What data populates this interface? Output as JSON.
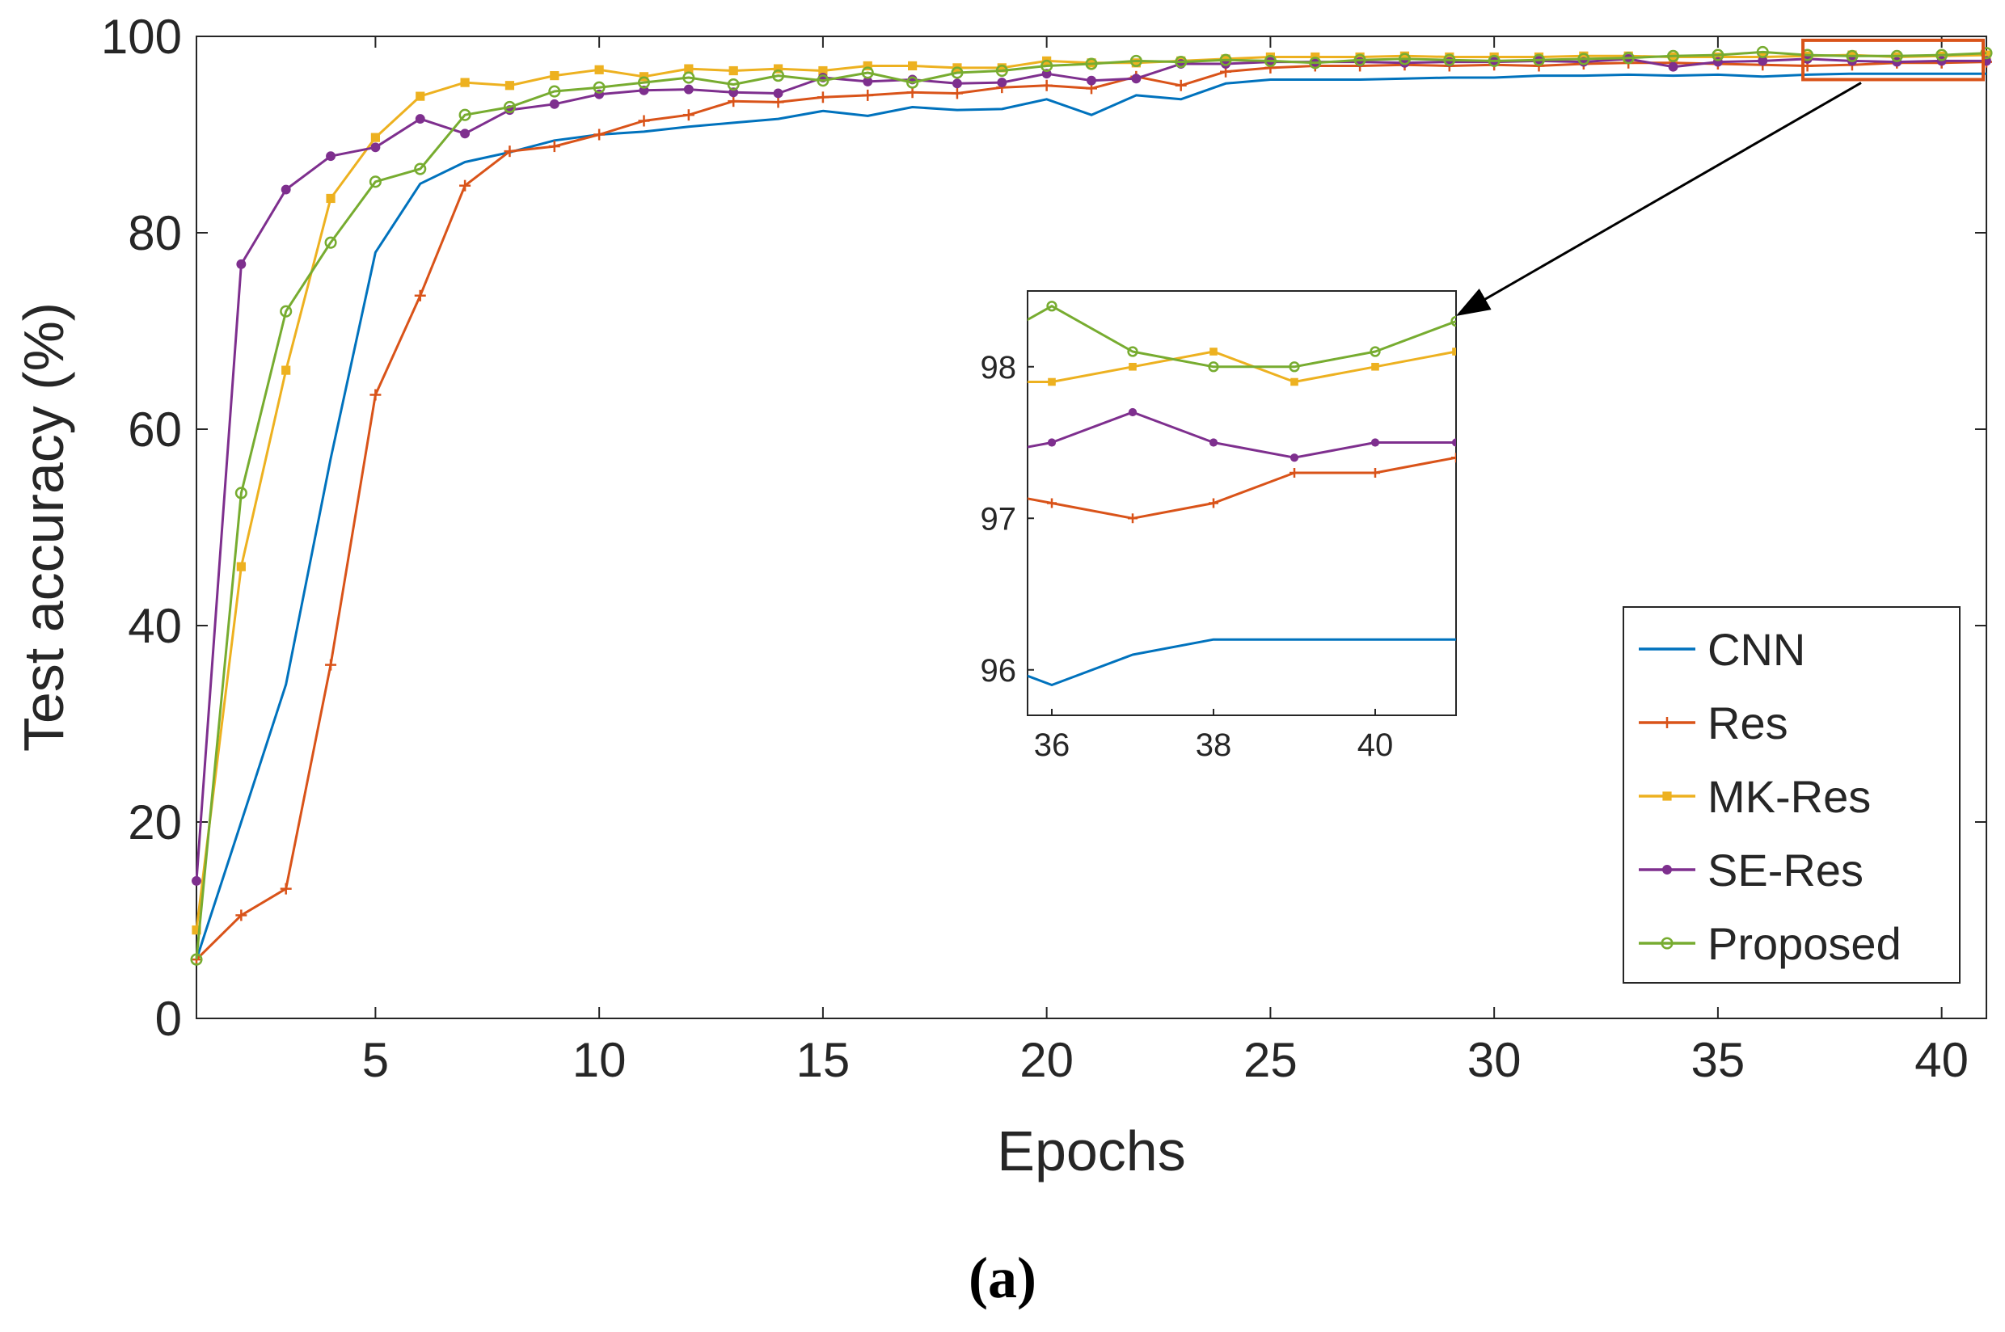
{
  "chart_data": {
    "type": "line",
    "xlabel": "Epochs",
    "ylabel": "Test accuracy (%)",
    "xlim": [
      1,
      41
    ],
    "ylim": [
      0,
      100
    ],
    "xticks": [
      "5",
      "10",
      "15",
      "20",
      "25",
      "30",
      "35",
      "40"
    ],
    "yticks": [
      "0",
      "20",
      "40",
      "60",
      "80",
      "100"
    ],
    "legend_position": "bottom-right",
    "caption": "(a)",
    "series": [
      {
        "name": "CNN",
        "color": "#0072BD",
        "marker": "none",
        "values": [
          6.0,
          20.0,
          34.0,
          57.0,
          78.0,
          85.0,
          87.2,
          88.2,
          89.4,
          90.0,
          90.3,
          90.8,
          91.2,
          91.6,
          92.4,
          91.9,
          92.8,
          92.5,
          92.6,
          93.6,
          92.0,
          94.0,
          93.6,
          95.2,
          95.6,
          95.6,
          95.6,
          95.7,
          95.8,
          95.8,
          96.0,
          96.0,
          96.1,
          96.0,
          96.1,
          95.9,
          96.1,
          96.2,
          96.2,
          96.2,
          96.2
        ]
      },
      {
        "name": "Res",
        "color": "#D95319",
        "marker": "plus",
        "values": [
          6.0,
          10.5,
          13.2,
          36.0,
          63.5,
          73.6,
          84.8,
          88.3,
          88.8,
          90.0,
          91.4,
          92.0,
          93.4,
          93.3,
          93.8,
          94.0,
          94.3,
          94.2,
          94.8,
          95.0,
          94.7,
          95.9,
          95.0,
          96.4,
          96.8,
          97.0,
          97.0,
          97.1,
          97.0,
          97.1,
          97.0,
          97.2,
          97.3,
          97.3,
          97.2,
          97.1,
          97.0,
          97.1,
          97.3,
          97.3,
          97.4
        ]
      },
      {
        "name": "MK-Res",
        "color": "#EDB120",
        "marker": "square",
        "values": [
          9.0,
          46.0,
          66.0,
          83.5,
          89.7,
          93.9,
          95.3,
          95.0,
          96.0,
          96.6,
          95.9,
          96.7,
          96.5,
          96.7,
          96.5,
          97.0,
          97.0,
          96.8,
          96.8,
          97.5,
          97.3,
          97.3,
          97.5,
          97.7,
          97.9,
          97.9,
          97.9,
          98.0,
          97.9,
          97.9,
          97.9,
          98.0,
          98.0,
          97.9,
          97.9,
          97.9,
          98.0,
          98.1,
          97.9,
          98.0,
          98.1
        ]
      },
      {
        "name": "SE-Res",
        "color": "#7E2F8E",
        "marker": "dot",
        "values": [
          14.0,
          76.8,
          84.4,
          87.8,
          88.7,
          91.6,
          90.1,
          92.5,
          93.1,
          94.1,
          94.5,
          94.6,
          94.3,
          94.2,
          95.8,
          95.4,
          95.6,
          95.2,
          95.3,
          96.2,
          95.5,
          95.7,
          97.2,
          97.2,
          97.4,
          97.4,
          97.4,
          97.3,
          97.4,
          97.4,
          97.5,
          97.4,
          97.7,
          96.9,
          97.4,
          97.5,
          97.7,
          97.5,
          97.4,
          97.5,
          97.5
        ]
      },
      {
        "name": "Proposed",
        "color": "#77AC30",
        "marker": "circle",
        "values": [
          6.0,
          53.5,
          72.0,
          79.0,
          85.2,
          86.5,
          92.0,
          92.8,
          94.4,
          94.8,
          95.3,
          95.8,
          95.1,
          96.0,
          95.5,
          96.3,
          95.3,
          96.3,
          96.5,
          97.0,
          97.2,
          97.5,
          97.4,
          97.6,
          97.5,
          97.3,
          97.6,
          97.7,
          97.6,
          97.5,
          97.6,
          97.7,
          97.8,
          98.0,
          98.1,
          98.4,
          98.1,
          98.0,
          98.0,
          98.1,
          98.3
        ]
      }
    ],
    "inset": {
      "xlim": [
        35.7,
        41
      ],
      "ylim": [
        95.7,
        98.5
      ],
      "xticks": [
        "36",
        "38",
        "40"
      ],
      "yticks": [
        "96",
        "97",
        "98"
      ],
      "zoom_region": {
        "x": [
          36.9,
          41
        ],
        "y": [
          95.7,
          98.5
        ]
      }
    }
  }
}
